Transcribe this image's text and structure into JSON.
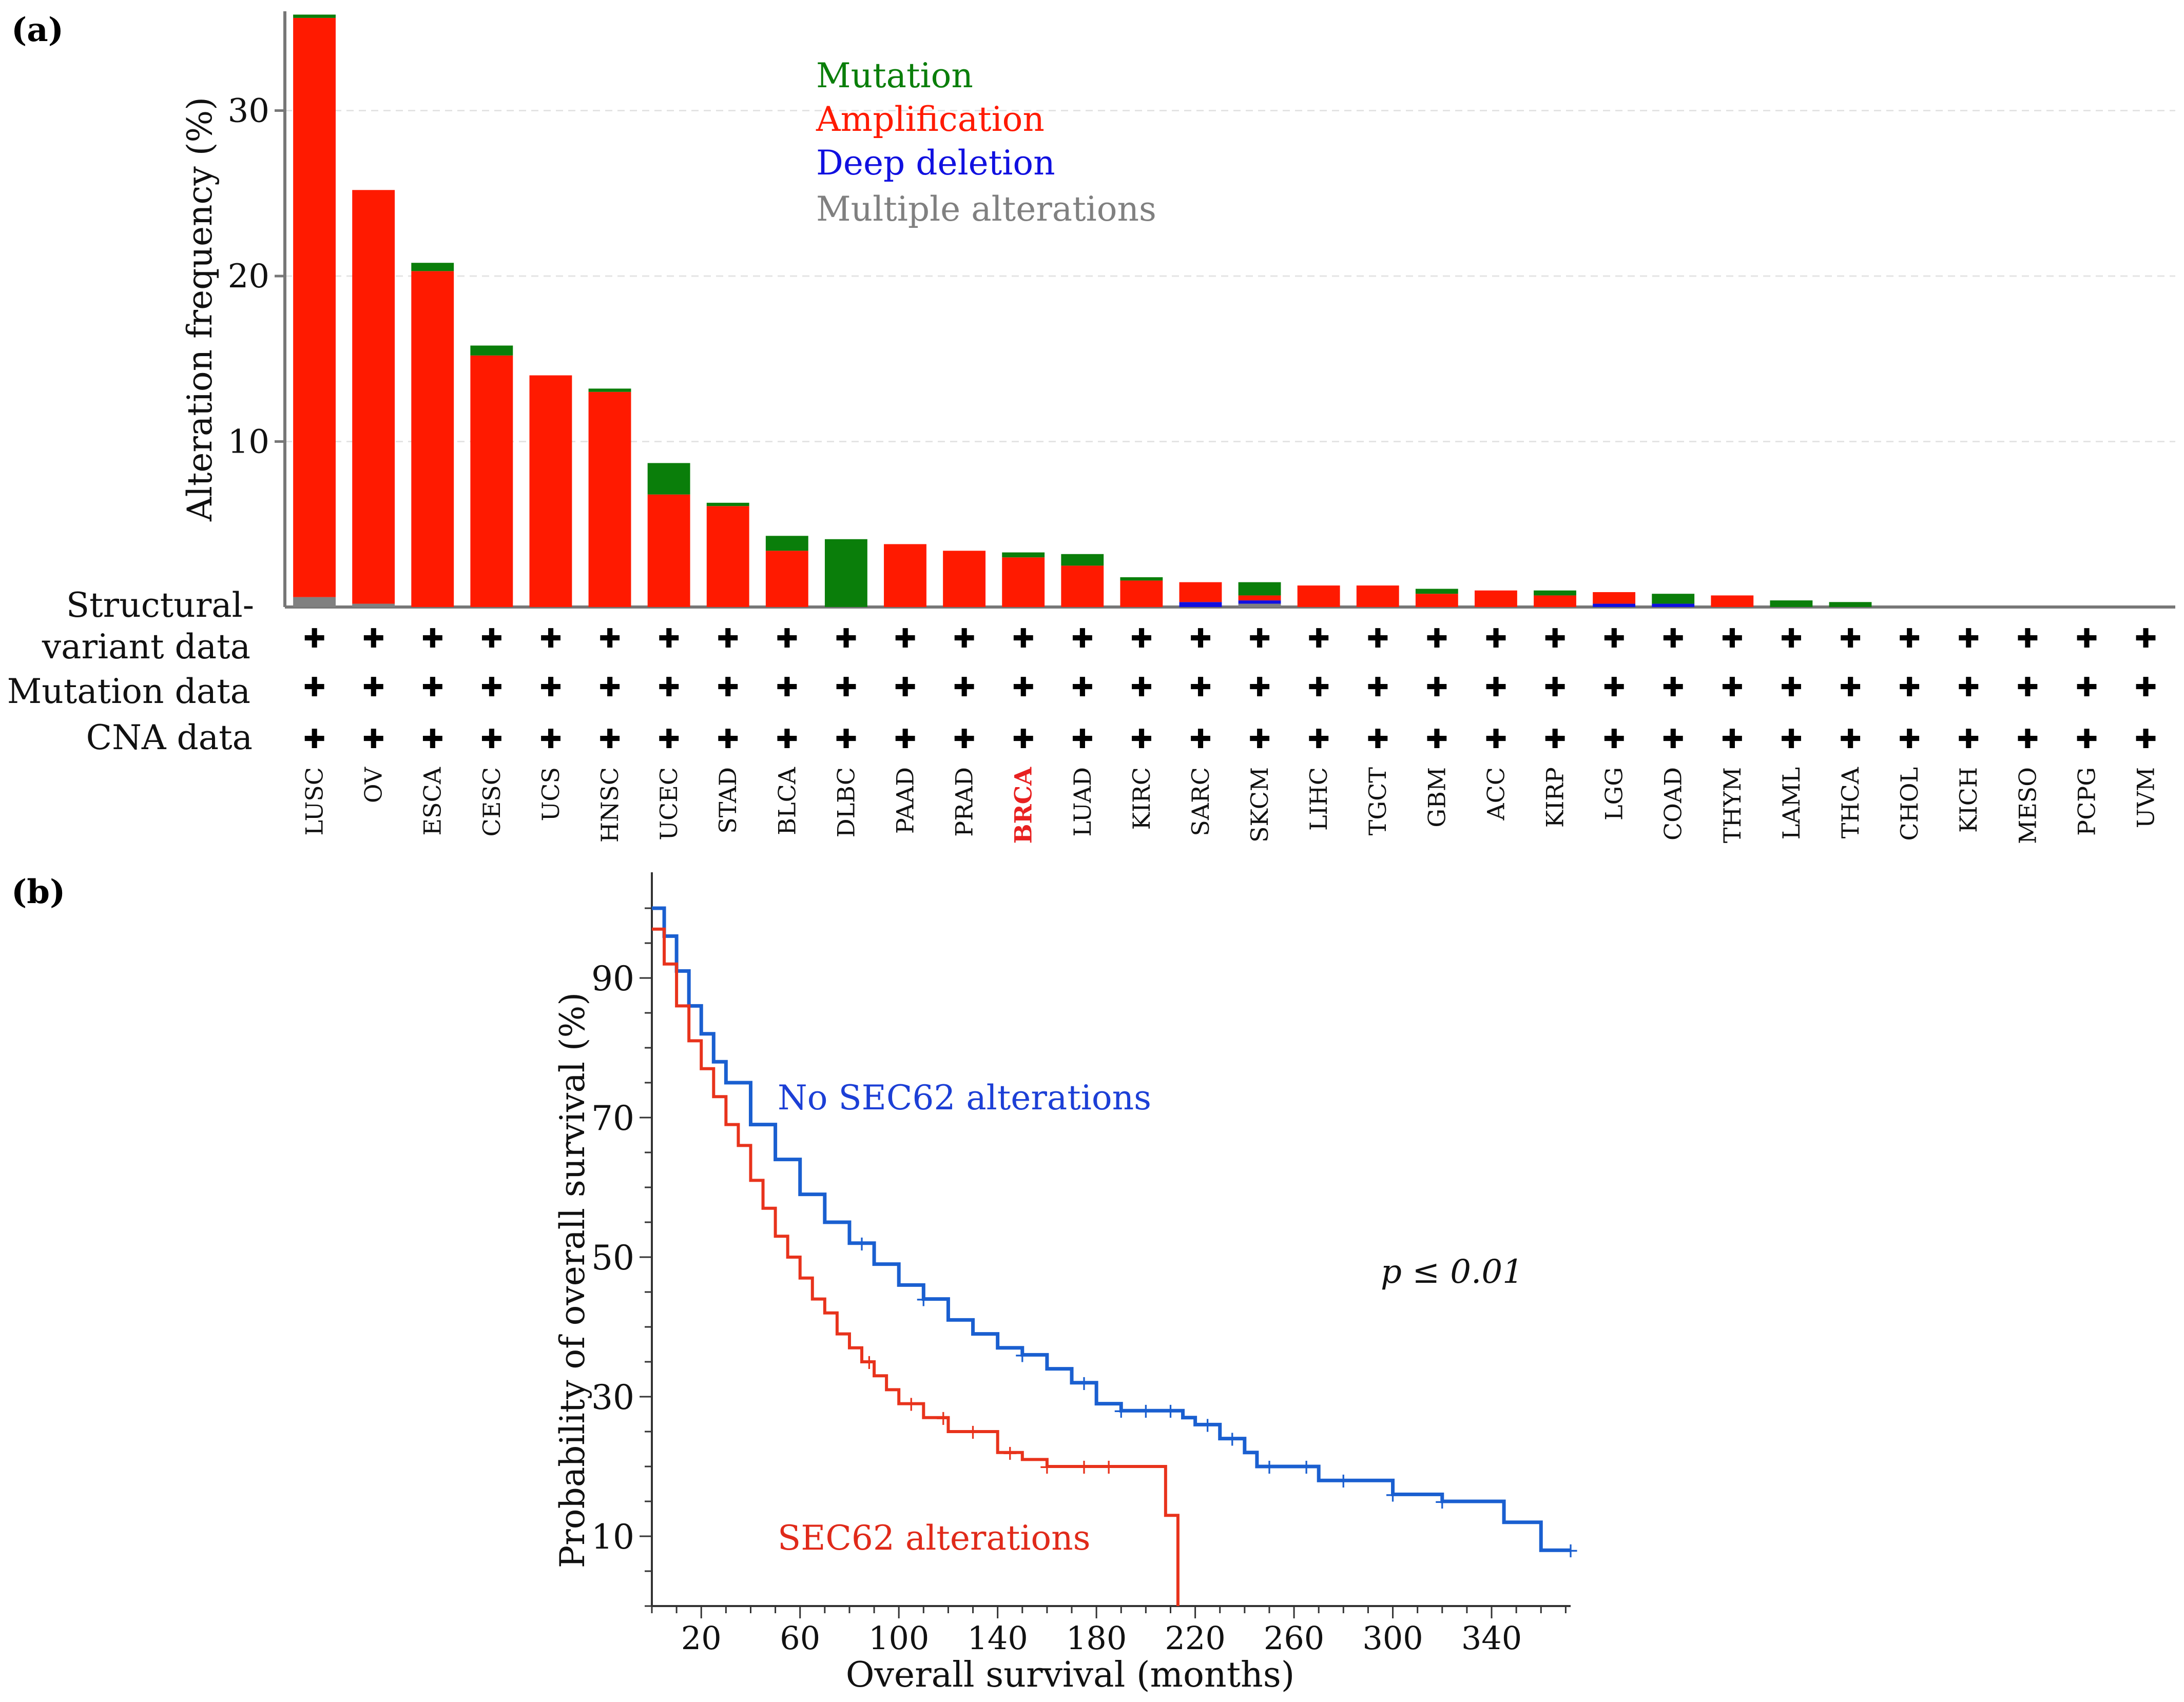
{
  "panels": {
    "a_label": "(a)",
    "b_label": "(b)"
  },
  "chart_data": [
    {
      "id": "a",
      "type": "bar",
      "stacked": true,
      "ylabel": "Alteration frequency (%)",
      "ylim": [
        0,
        36
      ],
      "yticks": [
        10,
        20,
        30
      ],
      "grid": true,
      "legend_position": "top-center",
      "colors": {
        "mutation": "#0a7e0a",
        "amplification": "#ff1a00",
        "deep_deletion": "#1010e0",
        "multiple": "#808080",
        "highlight_label": "#e82020"
      },
      "legend": [
        {
          "key": "mutation",
          "label": "Mutation"
        },
        {
          "key": "amplification",
          "label": "Amplification"
        },
        {
          "key": "deep_deletion",
          "label": "Deep deletion"
        },
        {
          "key": "multiple",
          "label": "Multiple alterations"
        }
      ],
      "row_labels": {
        "sv_line1": "Structural-",
        "sv_line2": "variant data",
        "mutation": "Mutation data",
        "cna": "CNA data",
        "marker": "✚"
      },
      "highlight": "BRCA",
      "categories": [
        "LUSC",
        "OV",
        "ESCA",
        "CESC",
        "UCS",
        "HNSC",
        "UCEC",
        "STAD",
        "BLCA",
        "DLBC",
        "PAAD",
        "PRAD",
        "BRCA",
        "LUAD",
        "KIRC",
        "SARC",
        "SKCM",
        "LIHC",
        "TGCT",
        "GBM",
        "ACC",
        "KIRP",
        "LGG",
        "COAD",
        "THYM",
        "LAML",
        "THCA",
        "CHOL",
        "KICH",
        "MESO",
        "PCPG",
        "UVM"
      ],
      "series": [
        {
          "key": "multiple",
          "values": [
            0.6,
            0.2,
            0,
            0,
            0,
            0,
            0,
            0,
            0,
            0,
            0,
            0,
            0,
            0,
            0,
            0,
            0.2,
            0,
            0,
            0,
            0,
            0,
            0,
            0,
            0,
            0,
            0,
            0,
            0,
            0,
            0,
            0
          ]
        },
        {
          "key": "deep_deletion",
          "values": [
            0,
            0,
            0,
            0,
            0,
            0,
            0,
            0,
            0,
            0,
            0,
            0,
            0,
            0,
            0,
            0.3,
            0.2,
            0,
            0,
            0,
            0,
            0,
            0.2,
            0.2,
            0,
            0,
            0,
            0,
            0,
            0,
            0,
            0
          ]
        },
        {
          "key": "amplification",
          "values": [
            35.0,
            25.0,
            20.3,
            15.2,
            14.0,
            13.0,
            6.8,
            6.1,
            3.4,
            0,
            3.8,
            3.4,
            3.0,
            2.5,
            1.6,
            1.2,
            0.3,
            1.3,
            1.3,
            0.8,
            1.0,
            0.7,
            0.7,
            0,
            0.7,
            0,
            0,
            0,
            0,
            0,
            0,
            0
          ]
        },
        {
          "key": "mutation",
          "values": [
            0.2,
            0,
            0.5,
            0.6,
            0,
            0.2,
            1.9,
            0.2,
            0.9,
            4.1,
            0,
            0,
            0.3,
            0.7,
            0.2,
            0,
            0.8,
            0,
            0,
            0.3,
            0,
            0.3,
            0,
            0.6,
            0,
            0.4,
            0.3,
            0,
            0,
            0,
            0,
            0
          ]
        }
      ]
    },
    {
      "id": "b",
      "type": "line",
      "subtype": "kaplan-meier",
      "xlabel": "Overall survival (months)",
      "ylabel": "Probability of overall survival (%)",
      "xlim": [
        0,
        372
      ],
      "ylim": [
        0,
        100
      ],
      "xticks": [
        20,
        60,
        100,
        140,
        180,
        220,
        260,
        300,
        340
      ],
      "yticks": [
        10,
        30,
        50,
        70,
        90
      ],
      "annotation": "p ≤ 0.01",
      "series": [
        {
          "name": "No SEC62 alterations",
          "color": "#1a5fd0",
          "label_color": "#1c3fd6",
          "x": [
            0,
            5,
            10,
            15,
            20,
            25,
            30,
            40,
            50,
            60,
            70,
            80,
            90,
            100,
            110,
            120,
            130,
            140,
            150,
            160,
            170,
            180,
            190,
            200,
            210,
            215,
            220,
            230,
            240,
            245,
            260,
            270,
            290,
            300,
            320,
            340,
            345,
            360,
            372
          ],
          "y": [
            100,
            96,
            91,
            86,
            82,
            78,
            75,
            69,
            64,
            59,
            55,
            52,
            49,
            46,
            44,
            41,
            39,
            37,
            36,
            34,
            32,
            29,
            28,
            28,
            28,
            27,
            26,
            24,
            22,
            20,
            20,
            18,
            18,
            16,
            15,
            15,
            12,
            8,
            8
          ],
          "censored_x": [
            85,
            110,
            150,
            175,
            190,
            200,
            210,
            225,
            235,
            250,
            265,
            280,
            300,
            320,
            372
          ]
        },
        {
          "name": "SEC62 alterations",
          "color": "#e8331c",
          "label_color": "#e02a1a",
          "x": [
            0,
            5,
            10,
            15,
            20,
            25,
            30,
            35,
            40,
            45,
            50,
            55,
            60,
            65,
            70,
            75,
            80,
            85,
            90,
            95,
            100,
            110,
            120,
            130,
            140,
            150,
            160,
            170,
            180,
            190,
            200,
            205,
            208,
            213
          ],
          "y": [
            97,
            92,
            86,
            81,
            77,
            73,
            69,
            66,
            61,
            57,
            53,
            50,
            47,
            44,
            42,
            39,
            37,
            35,
            33,
            31,
            29,
            27,
            25,
            25,
            22,
            21,
            20,
            20,
            20,
            20,
            20,
            20,
            13,
            0
          ],
          "censored_x": [
            88,
            105,
            118,
            130,
            145,
            160,
            175,
            185
          ]
        }
      ]
    }
  ]
}
